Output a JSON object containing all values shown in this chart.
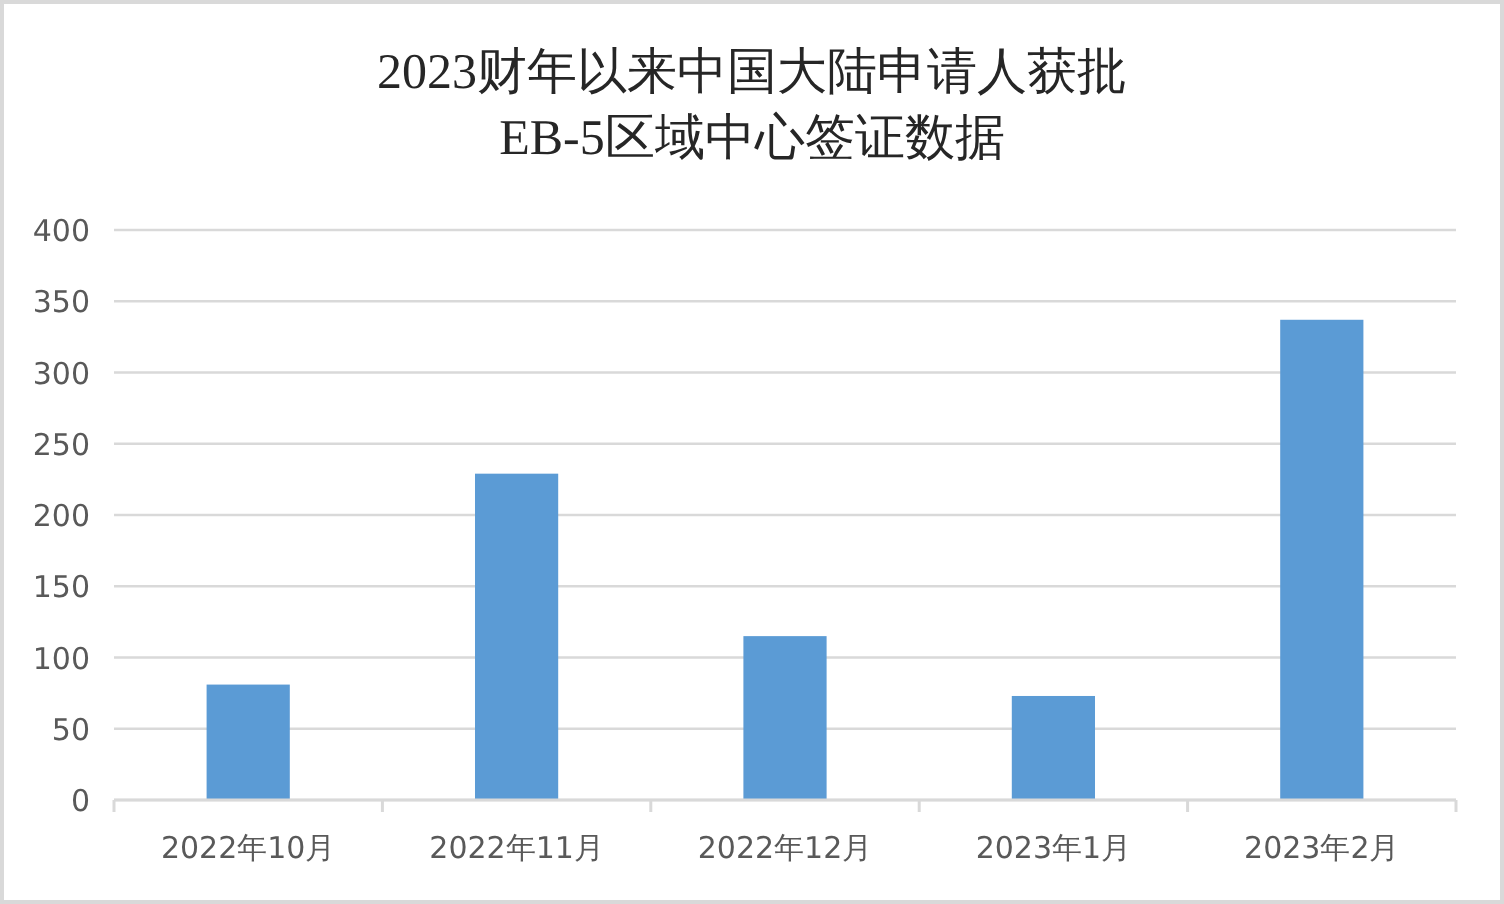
{
  "chart_data": {
    "type": "bar",
    "title": "2023财年以来中国大陆申请人获批\nEB-5区域中心签证数据",
    "categories": [
      "2022年10月",
      "2022年11月",
      "2022年12月",
      "2023年1月",
      "2023年2月"
    ],
    "values": [
      81,
      229,
      115,
      73,
      337
    ],
    "color": "#5b9bd5",
    "ylim": [
      0,
      400
    ],
    "yticks": [
      0,
      50,
      100,
      150,
      200,
      250,
      300,
      350,
      400
    ],
    "grid": "y"
  }
}
